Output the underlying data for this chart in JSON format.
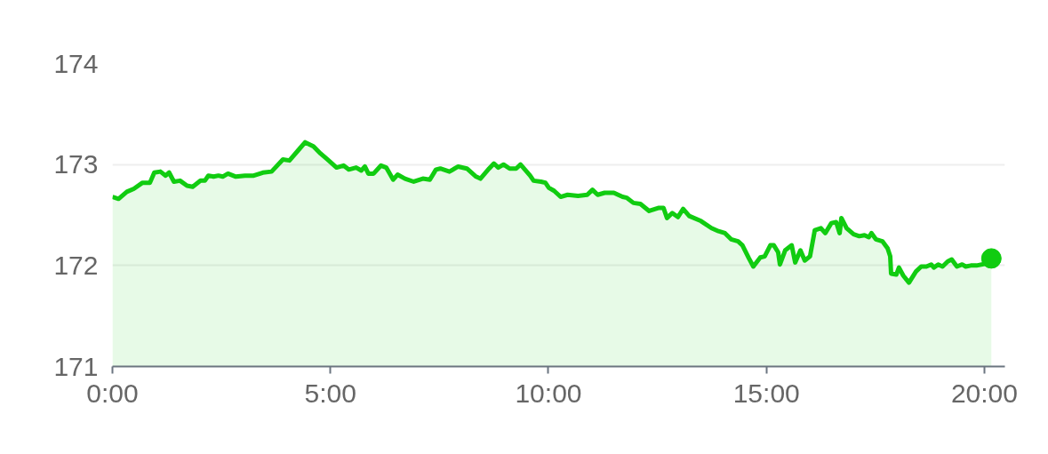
{
  "chart_data": {
    "type": "area",
    "xlim": [
      0,
      20.47
    ],
    "ylim": [
      171,
      174
    ],
    "xticks": [
      {
        "value": 0,
        "label": "0:00"
      },
      {
        "value": 5,
        "label": "5:00"
      },
      {
        "value": 10,
        "label": "10:00"
      },
      {
        "value": 15,
        "label": "15:00"
      },
      {
        "value": 20,
        "label": "20:00"
      }
    ],
    "yticks": [
      171,
      172,
      173,
      174
    ],
    "grid": "y",
    "marker": "none",
    "line_style": "solid",
    "series": [
      {
        "color": "#11cc11",
        "x": [
          0,
          0.14,
          0.33,
          0.49,
          0.69,
          0.86,
          0.96,
          1.1,
          1.22,
          1.3,
          1.41,
          1.55,
          1.71,
          1.84,
          2.02,
          2.12,
          2.2,
          2.32,
          2.43,
          2.53,
          2.65,
          2.83,
          3.04,
          3.24,
          3.45,
          3.65,
          3.91,
          4.06,
          4.26,
          4.42,
          4.61,
          4.77,
          4.93,
          5.14,
          5.3,
          5.42,
          5.59,
          5.71,
          5.79,
          5.87,
          5.99,
          6.16,
          6.28,
          6.44,
          6.54,
          6.71,
          6.91,
          7.12,
          7.28,
          7.42,
          7.52,
          7.73,
          7.93,
          8.13,
          8.34,
          8.44,
          8.64,
          8.75,
          8.85,
          8.97,
          9.11,
          9.26,
          9.36,
          9.58,
          9.66,
          9.83,
          9.93,
          10.01,
          10.13,
          10.28,
          10.44,
          10.68,
          10.89,
          11.01,
          11.13,
          11.29,
          11.5,
          11.7,
          11.8,
          11.95,
          12.11,
          12.31,
          12.52,
          12.64,
          12.72,
          12.84,
          12.97,
          13.09,
          13.23,
          13.5,
          13.74,
          13.9,
          14.05,
          14.19,
          14.35,
          14.45,
          14.6,
          14.7,
          14.86,
          14.96,
          15.09,
          15.17,
          15.27,
          15.31,
          15.43,
          15.58,
          15.66,
          15.78,
          15.88,
          16.0,
          16.11,
          16.25,
          16.35,
          16.49,
          16.6,
          16.68,
          16.72,
          16.84,
          17.0,
          17.13,
          17.25,
          17.35,
          17.41,
          17.51,
          17.66,
          17.78,
          17.84,
          17.86,
          17.98,
          18.04,
          18.14,
          18.27,
          18.43,
          18.55,
          18.67,
          18.78,
          18.84,
          18.94,
          19.04,
          19.16,
          19.25,
          19.37,
          19.49,
          19.57,
          19.69,
          19.82,
          20.06,
          20.16
        ],
        "values": [
          172.68,
          172.66,
          172.73,
          172.76,
          172.82,
          172.82,
          172.92,
          172.93,
          172.89,
          172.92,
          172.83,
          172.84,
          172.79,
          172.78,
          172.84,
          172.84,
          172.89,
          172.88,
          172.89,
          172.88,
          172.91,
          172.88,
          172.89,
          172.89,
          172.92,
          172.93,
          173.05,
          173.04,
          173.14,
          173.22,
          173.18,
          173.11,
          173.05,
          172.97,
          172.99,
          172.95,
          172.97,
          172.94,
          172.98,
          172.91,
          172.91,
          172.99,
          172.97,
          172.85,
          172.9,
          172.86,
          172.83,
          172.86,
          172.85,
          172.95,
          172.96,
          172.93,
          172.98,
          172.96,
          172.88,
          172.86,
          172.96,
          173.01,
          172.97,
          173.0,
          172.96,
          172.96,
          173.0,
          172.89,
          172.84,
          172.83,
          172.82,
          172.77,
          172.74,
          172.68,
          172.7,
          172.69,
          172.7,
          172.75,
          172.7,
          172.72,
          172.72,
          172.68,
          172.67,
          172.62,
          172.61,
          172.54,
          172.57,
          172.57,
          172.47,
          172.52,
          172.48,
          172.56,
          172.49,
          172.44,
          172.37,
          172.34,
          172.32,
          172.26,
          172.24,
          172.2,
          172.07,
          171.99,
          172.08,
          172.09,
          172.2,
          172.2,
          172.13,
          172.01,
          172.15,
          172.2,
          172.03,
          172.15,
          172.05,
          172.09,
          172.35,
          172.37,
          172.32,
          172.42,
          172.43,
          172.32,
          172.47,
          172.37,
          172.31,
          172.29,
          172.3,
          172.28,
          172.32,
          172.26,
          172.24,
          172.17,
          172.09,
          171.92,
          171.91,
          171.98,
          171.9,
          171.83,
          171.94,
          171.99,
          171.99,
          172.01,
          171.98,
          172.01,
          171.99,
          172.04,
          172.06,
          171.99,
          172.01,
          171.99,
          172.0,
          172.0,
          172.02,
          172.07
        ]
      },
      {
        "type": "scatter",
        "color": "#11cc11",
        "marker": "circle",
        "x": [
          20.16
        ],
        "values": [
          172.07
        ]
      }
    ]
  }
}
